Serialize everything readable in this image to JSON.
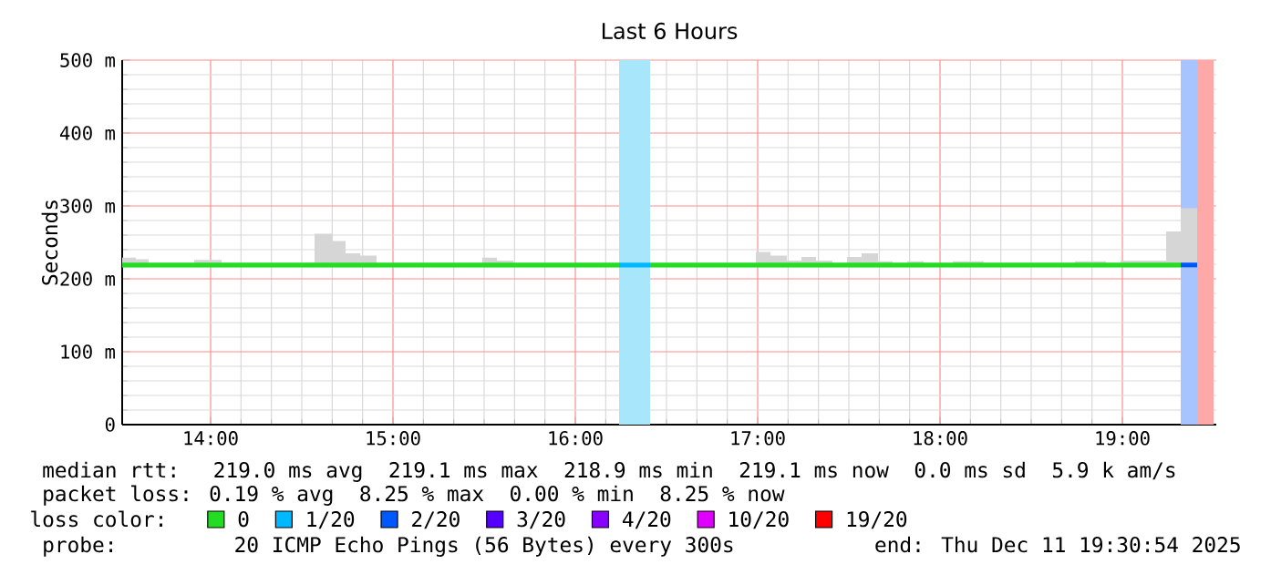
{
  "chart_data": {
    "type": "line",
    "title": "Last 6 Hours",
    "ylabel": "Seconds",
    "xlim": [
      13.515,
      19.515
    ],
    "ylim": [
      0,
      500
    ],
    "xticks": [
      {
        "value": 14,
        "label": "14:00"
      },
      {
        "value": 15,
        "label": "15:00"
      },
      {
        "value": 16,
        "label": "16:00"
      },
      {
        "value": 17,
        "label": "17:00"
      },
      {
        "value": 18,
        "label": "18:00"
      },
      {
        "value": 19,
        "label": "19:00"
      }
    ],
    "yticks": [
      0,
      {
        "value": 100,
        "label": "100 m"
      },
      {
        "value": 200,
        "label": "200 m"
      },
      {
        "value": 300,
        "label": "300 m"
      },
      {
        "value": 400,
        "label": "400 m"
      },
      {
        "value": 500,
        "label": "500 m"
      }
    ],
    "grid": true,
    "legend": "bottom",
    "legend_title": "loss color:",
    "series": [
      {
        "name": "0",
        "color": "#22dd22",
        "x": [
          13.515,
          13.59,
          13.59,
          13.66,
          13.66,
          13.91,
          13.91,
          14.06,
          14.06,
          14.52,
          14.52,
          14.57,
          14.57,
          14.67,
          14.67,
          14.74,
          14.74,
          14.82,
          14.82,
          14.91,
          14.91,
          15.49,
          15.49,
          15.57,
          15.57,
          15.66,
          15.66,
          16.24,
          16.3,
          16.41,
          16.99,
          16.99,
          17.07,
          17.07,
          17.16,
          17.16,
          17.24,
          17.24,
          17.32,
          17.32,
          17.41,
          17.41,
          17.49,
          17.49,
          17.57,
          17.57,
          17.66,
          17.66,
          17.74,
          17.74,
          17.82,
          17.82,
          17.91,
          17.91,
          18.07,
          18.07,
          18.24,
          18.24,
          18.74,
          18.74,
          18.91,
          18.91,
          18.99,
          18.99,
          19.24,
          19.24,
          19.32,
          19.32,
          19.41
        ],
        "values": [
          219,
          219,
          219,
          219,
          219,
          219,
          219,
          219,
          219,
          219,
          219,
          219,
          219,
          219,
          219,
          219,
          219,
          219,
          219,
          219,
          219,
          219,
          219,
          219,
          219,
          219,
          219,
          219,
          null,
          219,
          219,
          219,
          219,
          219,
          219,
          219,
          219,
          219,
          219,
          219,
          219,
          219,
          219,
          219,
          219,
          219,
          219,
          219,
          219,
          219,
          219,
          219,
          219,
          219,
          219,
          219,
          219,
          219,
          219,
          219,
          219,
          219,
          219,
          219,
          219,
          219,
          219,
          null,
          null
        ],
        "lower": [
          216,
          216,
          216,
          216,
          216,
          216,
          216,
          216,
          216,
          216,
          216,
          216,
          216,
          216,
          216,
          216,
          216,
          216,
          216,
          216,
          216,
          216,
          216,
          216,
          216,
          216,
          216,
          216,
          null,
          216,
          216,
          216,
          216,
          216,
          216,
          216,
          216,
          216,
          216,
          216,
          216,
          216,
          216,
          216,
          216,
          216,
          216,
          216,
          216,
          216,
          216,
          216,
          216,
          216,
          216,
          216,
          216,
          216,
          216,
          216,
          216,
          216,
          216,
          216,
          216,
          216,
          216,
          216,
          216
        ],
        "upper": [
          229,
          229,
          227,
          227,
          221,
          221,
          226,
          226,
          221,
          221,
          222,
          222,
          262,
          262,
          252,
          252,
          235,
          235,
          232,
          232,
          221,
          221,
          229,
          229,
          225,
          225,
          221,
          221,
          null,
          221,
          221,
          237,
          237,
          232,
          232,
          225,
          225,
          230,
          230,
          225,
          225,
          221,
          221,
          230,
          230,
          235,
          235,
          224,
          224,
          221,
          221,
          224,
          224,
          221,
          221,
          224,
          224,
          221,
          221,
          224,
          224,
          221,
          221,
          225,
          225,
          265,
          265,
          297,
          297
        ]
      },
      {
        "name": "1/20",
        "color": "#00b8ff",
        "x": [
          16.24,
          16.41
        ],
        "values": [
          219,
          219
        ]
      },
      {
        "name": "2/20",
        "color": "#0059ff",
        "x": [
          19.32,
          19.41
        ],
        "values": [
          219,
          219
        ]
      },
      {
        "name": "3/20",
        "color": "#5500ff"
      },
      {
        "name": "4/20",
        "color": "#8800ff"
      },
      {
        "name": "10/20",
        "color": "#e000ff"
      },
      {
        "name": "19/20",
        "color": "#ff0000"
      }
    ],
    "bands": [
      {
        "axis": "x",
        "from": 16.24,
        "to": 16.41,
        "color": "#a8e6fb"
      },
      {
        "axis": "x",
        "from": 19.32,
        "to": 19.41,
        "color": "#a8c4ff"
      },
      {
        "axis": "x",
        "from": 19.41,
        "to": 19.5,
        "color": "#ffa8a8"
      }
    ],
    "annotations": [
      "median rtt:  219.0 ms avg  219.1 ms max  218.9 ms min  219.1 ms now  0.0 ms sd  5.9 k am/s",
      "packet loss: 0.19 % avg  8.25 % max  0.00 % min  8.25 % now",
      "probe:       20 ICMP Echo Pings (56 Bytes) every 300s",
      "end: Thu Dec 11 19:30:54 2025"
    ]
  }
}
